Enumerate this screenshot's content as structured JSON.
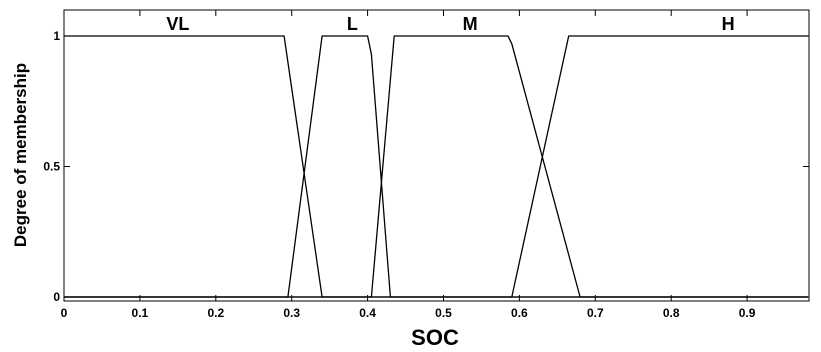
{
  "chart_data": {
    "type": "line",
    "title": "",
    "xlabel": "SOC",
    "ylabel": "Degree of membership",
    "xlim": [
      0,
      1
    ],
    "ylim": [
      0,
      1.05
    ],
    "xticks": [
      0,
      0.1,
      0.2,
      0.3,
      0.4,
      0.5,
      0.6,
      0.7,
      0.8,
      0.9
    ],
    "xtick_labels": [
      "0",
      "0.1",
      "0.2",
      "0.3",
      "0.4",
      "0.5",
      "0.6",
      "0.7",
      "0.8",
      "0.9"
    ],
    "yticks": [
      0,
      0.5,
      1
    ],
    "ytick_labels": [
      "0",
      "0.5",
      "1"
    ],
    "grid": false,
    "series": [
      {
        "name": "VL",
        "label_x": 0.15,
        "x": [
          0,
          0.29,
          0.34,
          0.98
        ],
        "y": [
          1,
          1,
          0,
          0
        ]
      },
      {
        "name": "L",
        "label_x": 0.38,
        "x": [
          0,
          0.295,
          0.34,
          0.4,
          0.405,
          0.43,
          0.98
        ],
        "y": [
          0,
          0,
          1,
          1,
          0.93,
          0,
          0
        ]
      },
      {
        "name": "M",
        "label_x": 0.535,
        "x": [
          0,
          0.405,
          0.435,
          0.585,
          0.59,
          0.68,
          0.98
        ],
        "y": [
          0,
          0,
          1,
          1,
          0.97,
          0,
          0
        ]
      },
      {
        "name": "H",
        "label_x": 0.875,
        "x": [
          0,
          0.59,
          0.665,
          0.98
        ],
        "y": [
          0,
          0,
          1,
          1
        ]
      }
    ]
  }
}
